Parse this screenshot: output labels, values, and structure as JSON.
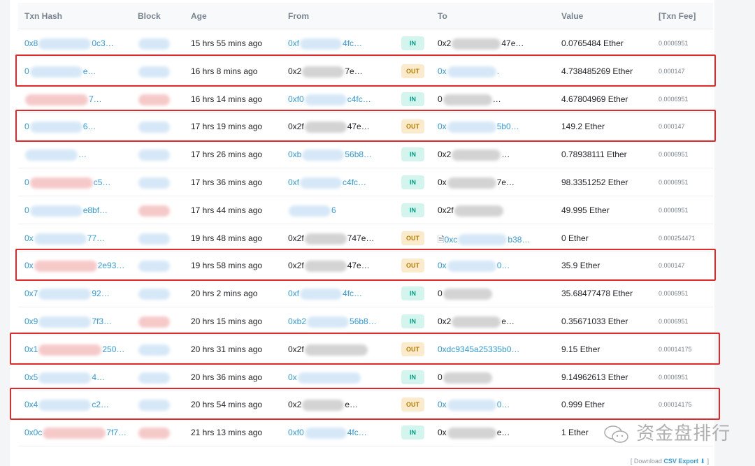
{
  "header": {
    "hash": "Txn Hash",
    "block": "Block",
    "age": "Age",
    "from": "From",
    "to": "To",
    "value": "Value",
    "fee": "[Txn Fee]"
  },
  "rows": [
    {
      "hash": [
        "0x8",
        "0c3…"
      ],
      "age": "15 hrs 55 mins ago",
      "from": [
        "0xf",
        "4fc…"
      ],
      "from_link": true,
      "dir": "IN",
      "to": [
        "0x2",
        "47e…"
      ],
      "to_link": false,
      "value": "0.0765484 Ether",
      "fee": "0.0006951"
    },
    {
      "hash": [
        "0",
        "e…"
      ],
      "age": "16 hrs 8 mins ago",
      "from": [
        "0x2",
        "7e…"
      ],
      "from_link": false,
      "dir": "OUT",
      "to": [
        "0x",
        "."
      ],
      "to_link": true,
      "value": "4.738485269 Ether",
      "fee": "0.000147",
      "flag": true
    },
    {
      "hash": [
        "",
        "7…"
      ],
      "age": "16 hrs 14 mins ago",
      "from": [
        "0xf0",
        "c4fc…"
      ],
      "from_link": true,
      "dir": "IN",
      "to": [
        "0",
        "…"
      ],
      "to_link": false,
      "value": "4.67804969 Ether",
      "fee": "0.0006951"
    },
    {
      "hash": [
        "0",
        "6…"
      ],
      "age": "17 hrs 19 mins ago",
      "from": [
        "0x2f",
        "47e…"
      ],
      "from_link": false,
      "dir": "OUT",
      "to": [
        "0x",
        "5b0…"
      ],
      "to_link": true,
      "value": "149.2 Ether",
      "fee": "0.000147",
      "flag": true
    },
    {
      "hash": [
        "",
        "…"
      ],
      "age": "17 hrs 26 mins ago",
      "from": [
        "0xb",
        "56b8…"
      ],
      "from_link": true,
      "dir": "IN",
      "to": [
        "0x2",
        "…"
      ],
      "to_link": false,
      "value": "0.78938111 Ether",
      "fee": "0.0006951"
    },
    {
      "hash": [
        "0",
        "c5…"
      ],
      "age": "17 hrs 36 mins ago",
      "from": [
        "0xf",
        "c4fc…"
      ],
      "from_link": true,
      "dir": "IN",
      "to": [
        "0x",
        "7e…"
      ],
      "to_link": false,
      "value": "98.3351252 Ether",
      "fee": "0.0006951"
    },
    {
      "hash": [
        "0",
        "e8bf…"
      ],
      "age": "17 hrs 44 mins ago",
      "from": [
        "",
        "6"
      ],
      "from_link": true,
      "dir": "IN",
      "to": [
        "0x2f",
        ""
      ],
      "to_link": false,
      "value": "49.995 Ether",
      "fee": "0.0006951"
    },
    {
      "hash": [
        "0x",
        "77…"
      ],
      "age": "19 hrs 48 mins ago",
      "from": [
        "0x2f",
        "747e…"
      ],
      "from_link": false,
      "dir": "OUT",
      "to": [
        "0xc",
        "b38…"
      ],
      "to_link": true,
      "contract": true,
      "value": "0 Ether",
      "fee": "0.000254471"
    },
    {
      "hash": [
        "0x",
        "2e93…"
      ],
      "age": "19 hrs 58 mins ago",
      "from": [
        "0x2f",
        "47e…"
      ],
      "from_link": false,
      "dir": "OUT",
      "to": [
        "0x",
        "0…"
      ],
      "to_link": true,
      "value": "35.9 Ether",
      "fee": "0.000147",
      "flag": true
    },
    {
      "hash": [
        "0x7",
        "92…"
      ],
      "age": "20 hrs 2 mins ago",
      "from": [
        "0xf",
        "4fc…"
      ],
      "from_link": true,
      "dir": "IN",
      "to": [
        "0",
        ""
      ],
      "to_link": false,
      "value": "35.68477478 Ether",
      "fee": "0.0006951"
    },
    {
      "hash": [
        "0x9",
        "7f3…"
      ],
      "age": "20 hrs 15 mins ago",
      "from": [
        "0xb2",
        "56b8…"
      ],
      "from_link": true,
      "dir": "IN",
      "to": [
        "0x2",
        "e…"
      ],
      "to_link": false,
      "value": "0.35671033 Ether",
      "fee": "0.0006951"
    },
    {
      "hash": [
        "0x1",
        "250…"
      ],
      "age": "20 hrs 31 mins ago",
      "from": [
        "0x2f",
        ""
      ],
      "from_link": false,
      "dir": "OUT",
      "to": [
        "0xdc9345a25335b0…",
        ""
      ],
      "to_link": true,
      "value": "9.15 Ether",
      "fee": "0.00014175",
      "flag": true
    },
    {
      "hash": [
        "0x5",
        "4…"
      ],
      "age": "20 hrs 36 mins ago",
      "from": [
        "0x",
        ""
      ],
      "from_link": true,
      "dir": "IN",
      "to": [
        "0",
        ""
      ],
      "to_link": false,
      "value": "9.14962613 Ether",
      "fee": "0.0006951"
    },
    {
      "hash": [
        "0x4",
        "c2…"
      ],
      "age": "20 hrs 54 mins ago",
      "from": [
        "0x2",
        "e…"
      ],
      "from_link": false,
      "dir": "OUT",
      "to": [
        "0x",
        "0…"
      ],
      "to_link": true,
      "value": "0.999 Ether",
      "fee": "0.00014175",
      "flag": true
    },
    {
      "hash": [
        "0x0c",
        "7f7…"
      ],
      "age": "21 hrs 13 mins ago",
      "from": [
        "0xf0",
        "4fc…"
      ],
      "from_link": true,
      "dir": "IN",
      "to": [
        "0x",
        "e…"
      ],
      "to_link": false,
      "value": "1 Ether",
      "fee": ""
    }
  ],
  "footer": {
    "prefix": "[ Download",
    "link": "CSV Export",
    "suffix": "]"
  },
  "watermark": "资金盘排行",
  "colors": {
    "link": "#3498db",
    "in": "#00a186",
    "out": "#b47d00",
    "highlight": "#de2a2a"
  }
}
